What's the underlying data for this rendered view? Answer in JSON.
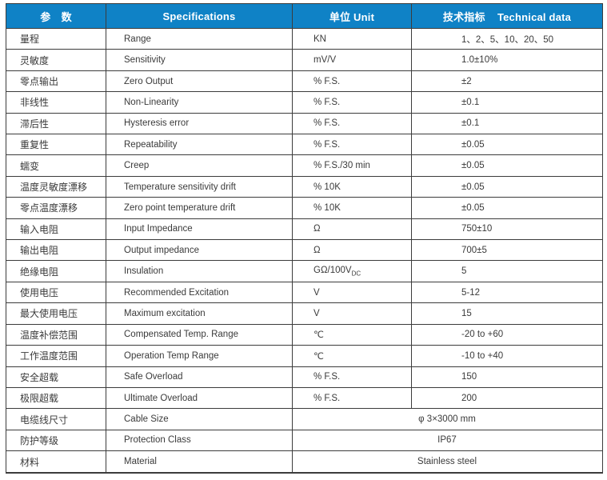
{
  "colors": {
    "header_bg": "#0F82C6",
    "header_text": "#ffffff",
    "body_text": "#3a3a3a",
    "border": "#3c3c3c"
  },
  "header": {
    "col_param": "参　数",
    "col_spec": "Specifications",
    "col_unit": "单位 Unit",
    "col_data": "技术指标    Technical data"
  },
  "table": {
    "rows": [
      {
        "cn": "量程",
        "en": "Range",
        "unit": "KN",
        "value": "1、2、5、10、20、50"
      },
      {
        "cn": "灵敏度",
        "en": "Sensitivity",
        "unit": "mV/V",
        "value": "1.0±10%"
      },
      {
        "cn": "零点输出",
        "en": "Zero Output",
        "unit": "% F.S.",
        "value": "±2"
      },
      {
        "cn": "非线性",
        "en": "Non-Linearity",
        "unit": "% F.S.",
        "value": "±0.1"
      },
      {
        "cn": "滞后性",
        "en": "Hysteresis error",
        "unit": "% F.S.",
        "value": "±0.1"
      },
      {
        "cn": "重复性",
        "en": "Repeatability",
        "unit": "% F.S.",
        "value": "±0.05"
      },
      {
        "cn": "蠕变",
        "en": "Creep",
        "unit": "% F.S./30 min",
        "value": "±0.05"
      },
      {
        "cn": "温度灵敏度漂移",
        "en": "Temperature sensitivity drift",
        "unit": "% 10K",
        "value": "±0.05"
      },
      {
        "cn": "零点温度漂移",
        "en": "Zero point temperature drift",
        "unit": "% 10K",
        "value": "±0.05"
      },
      {
        "cn": "输入电阻",
        "en": "Input Impedance",
        "unit": "Ω",
        "value": "750±10"
      },
      {
        "cn": "输出电阻",
        "en": "Output impedance",
        "unit": "Ω",
        "value": "700±5"
      },
      {
        "cn": "绝缘电阻",
        "en": "Insulation",
        "unit": "GΩ/100V",
        "unit_sub": "DC",
        "value": "5"
      },
      {
        "cn": "使用电压",
        "en": "Recommended Excitation",
        "unit": "V",
        "value": "5-12"
      },
      {
        "cn": "最大使用电压",
        "en": "Maximum excitation",
        "unit": "V",
        "value": "15"
      },
      {
        "cn": "温度补偿范围",
        "en": "Compensated Temp. Range",
        "unit": "℃",
        "value": "-20 to +60"
      },
      {
        "cn": "工作温度范围",
        "en": "Operation Temp Range",
        "unit": "℃",
        "value": "-10 to +40"
      },
      {
        "cn": "安全超载",
        "en": "Safe Overload",
        "unit": "% F.S.",
        "value": "150"
      },
      {
        "cn": "极限超载",
        "en": "Ultimate Overload",
        "unit": "% F.S.",
        "value": "200"
      },
      {
        "cn": "电缆线尺寸",
        "en": "Cable Size",
        "merged_value": "φ 3×3000 mm"
      },
      {
        "cn": "防护等级",
        "en": "Protection Class",
        "merged_value": "IP67"
      },
      {
        "cn": "材料",
        "en": "Material",
        "merged_value": "Stainless steel"
      }
    ]
  }
}
